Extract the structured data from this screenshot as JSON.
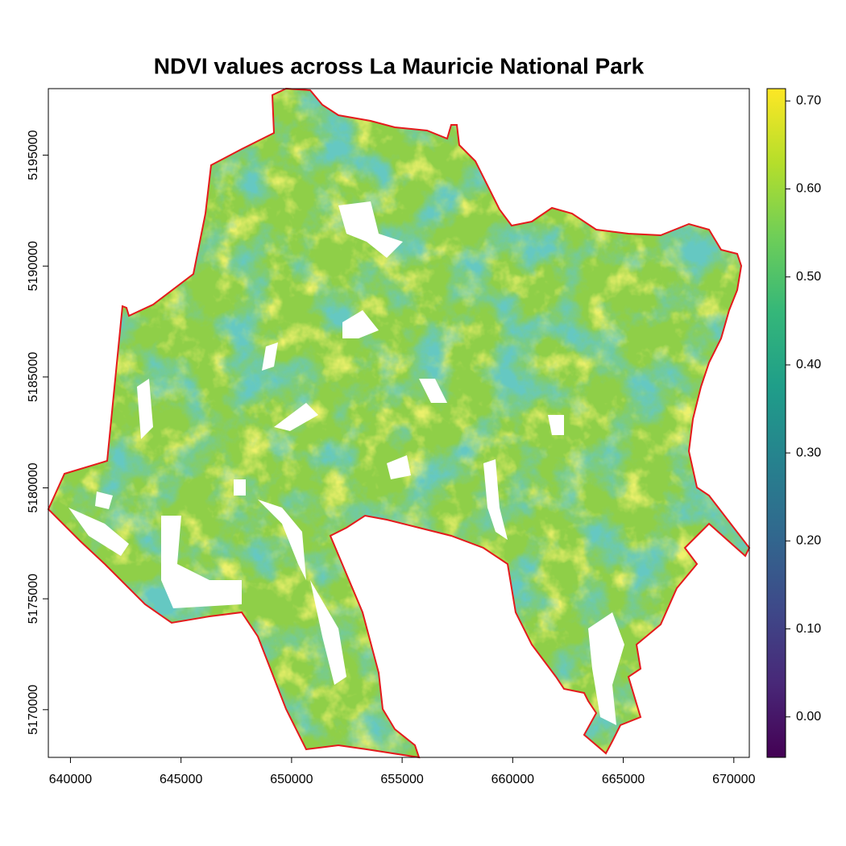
{
  "chart_data": {
    "type": "raster",
    "title": "NDVI values across La Mauricie National Park",
    "xlim": [
      639000,
      670700
    ],
    "ylim": [
      5167850,
      5198000
    ],
    "xticks": [
      640000,
      645000,
      650000,
      655000,
      660000,
      665000,
      670000
    ],
    "yticks": [
      5170000,
      5175000,
      5180000,
      5185000,
      5190000,
      5195000
    ],
    "clim": [
      -0.046,
      0.714
    ],
    "cticks": [
      {
        "value": 0.0,
        "label": "0.00"
      },
      {
        "value": 0.1,
        "label": "0.10"
      },
      {
        "value": 0.2,
        "label": "0.20"
      },
      {
        "value": 0.3,
        "label": "0.30"
      },
      {
        "value": 0.4,
        "label": "0.40"
      },
      {
        "value": 0.5,
        "label": "0.50"
      },
      {
        "value": 0.6,
        "label": "0.60"
      },
      {
        "value": 0.7,
        "label": "0.70"
      }
    ],
    "colormap": [
      "#440154",
      "#482878",
      "#3e4989",
      "#31688e",
      "#26828e",
      "#1f9e89",
      "#35b779",
      "#6ece58",
      "#b5de2b",
      "#fde725"
    ],
    "outline_color": "#e41a1c"
  }
}
